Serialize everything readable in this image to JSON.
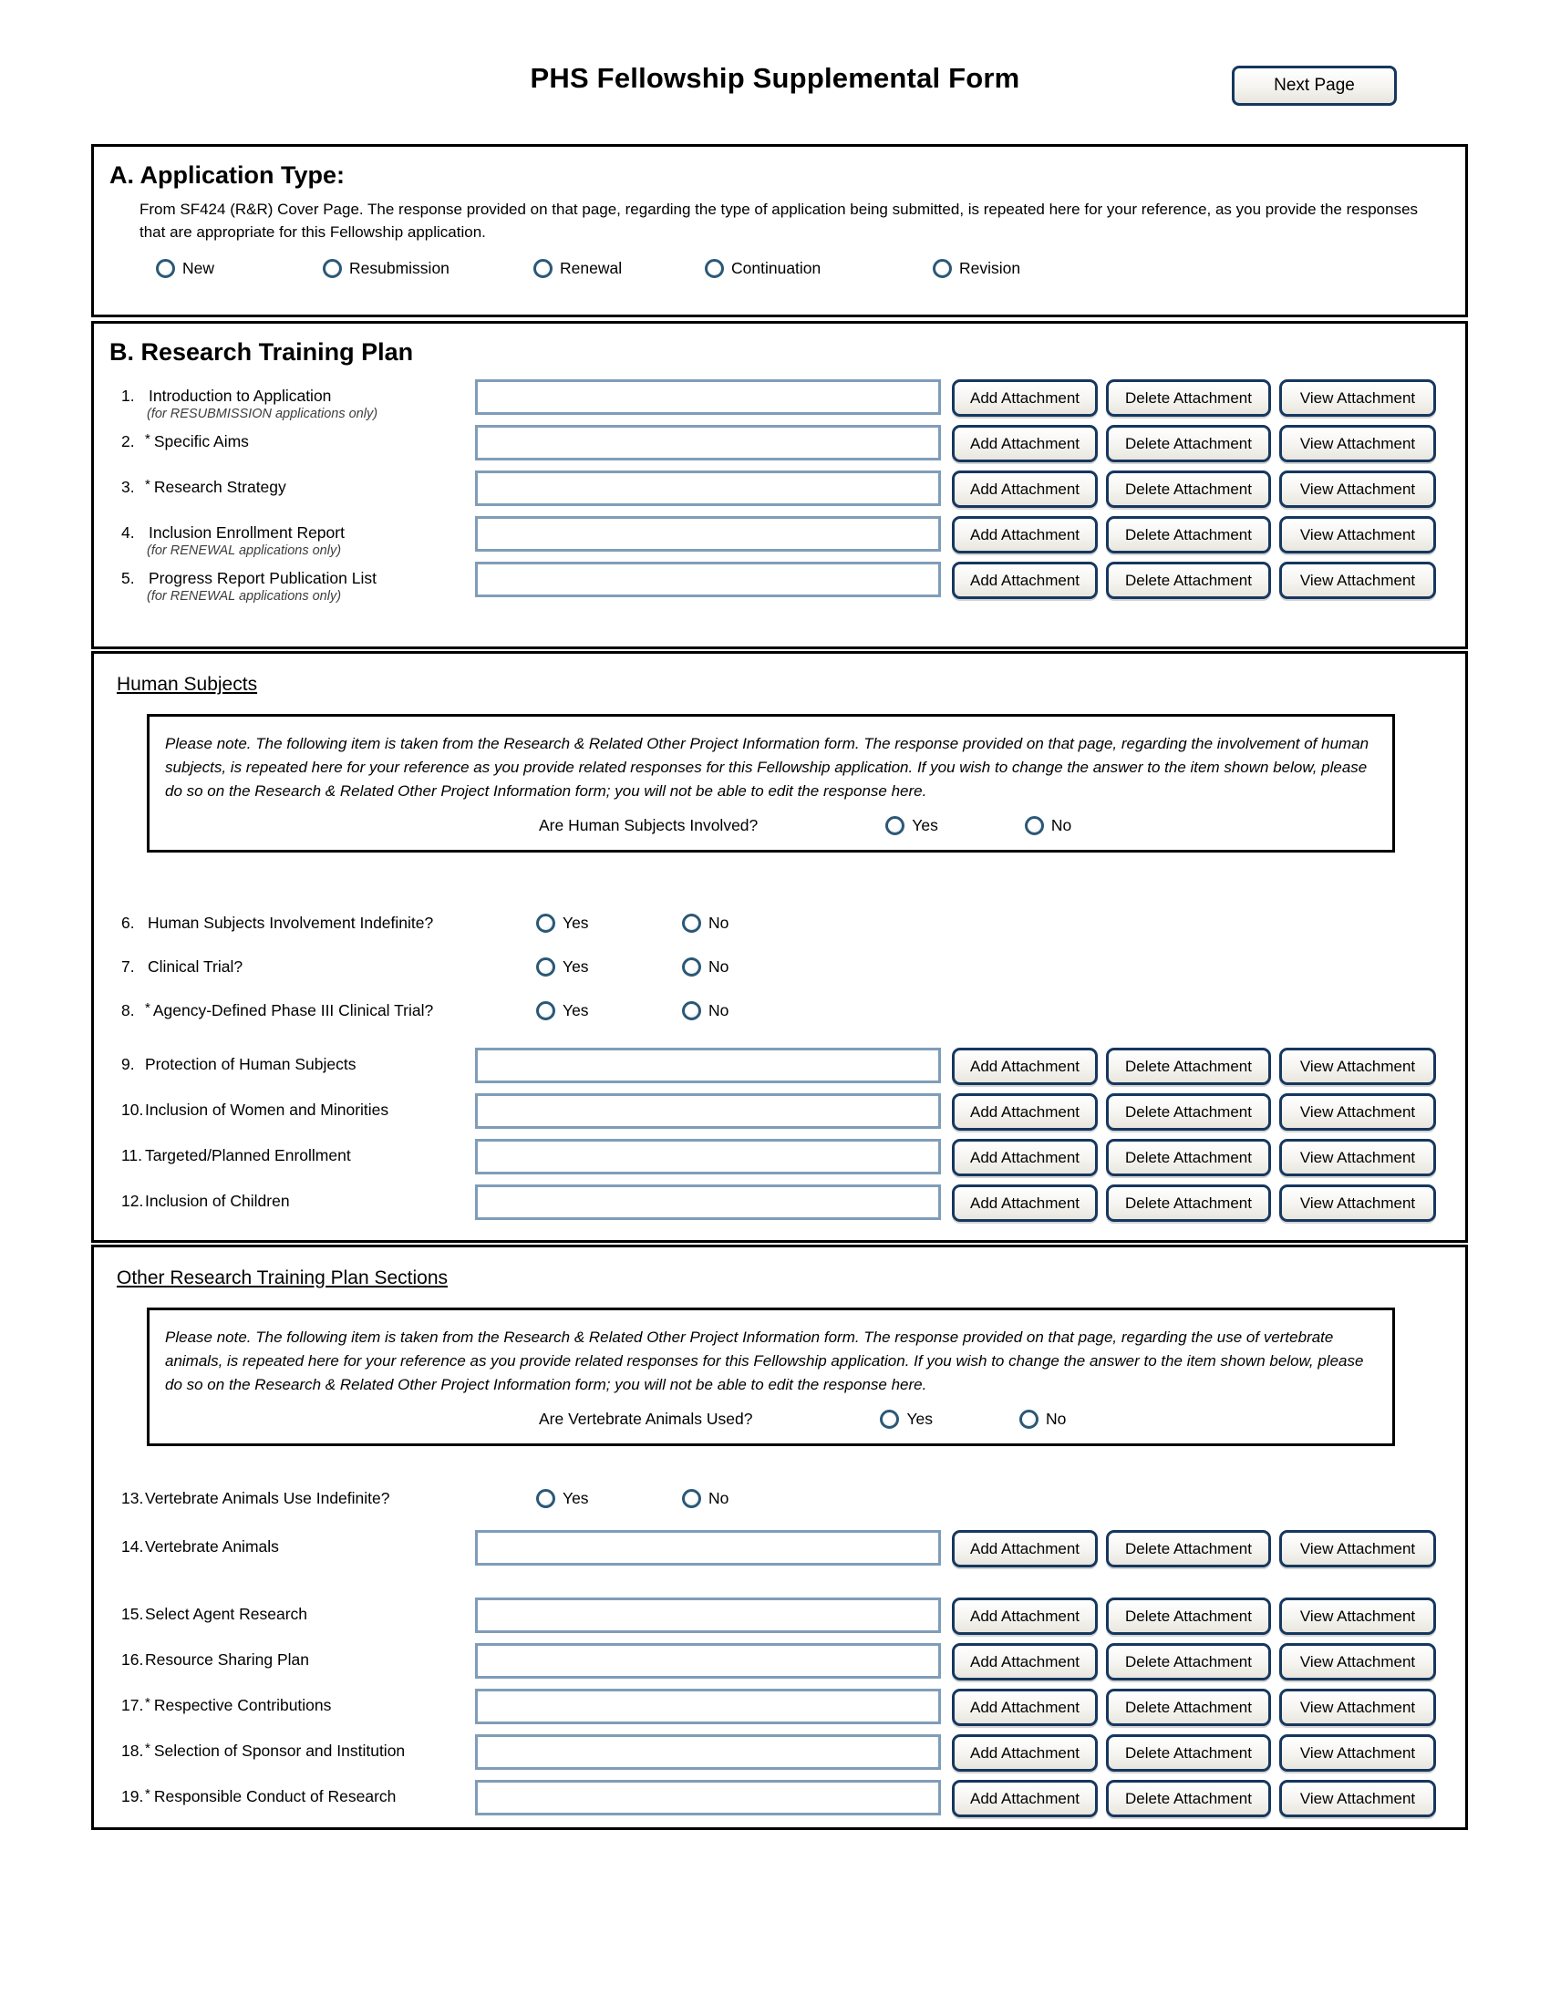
{
  "header": {
    "title": "PHS Fellowship Supplemental Form",
    "next_page_label": "Next Page"
  },
  "buttons": {
    "add_label": "Add Attachment",
    "delete_label": "Delete Attachment",
    "view_label": "View Attachment"
  },
  "radio_labels": {
    "yes": "Yes",
    "no": "No"
  },
  "section_a": {
    "title": "A. Application Type:",
    "description": "From SF424 (R&R) Cover Page.  The response provided on that page, regarding the type of application being submitted, is repeated here for your reference, as you provide the responses that are appropriate for this Fellowship application.",
    "options": [
      {
        "label": "New"
      },
      {
        "label": "Resubmission"
      },
      {
        "label": "Renewal"
      },
      {
        "label": "Continuation"
      },
      {
        "label": "Revision"
      }
    ]
  },
  "section_b": {
    "title": "B. Research Training Plan",
    "items": [
      {
        "num": "1.",
        "label": "Introduction to Application",
        "note": "(for RESUBMISSION applications only)"
      },
      {
        "num": "2.",
        "star": "*",
        "label": "Specific Aims"
      },
      {
        "num": "3.",
        "star": "*",
        "label": "Research Strategy"
      },
      {
        "num": "4.",
        "label": "Inclusion Enrollment Report",
        "note": "(for RENEWAL applications only)"
      },
      {
        "num": "5.",
        "label": "Progress Report Publication List",
        "note": "(for RENEWAL applications only)"
      }
    ]
  },
  "human_subjects": {
    "heading": "Human Subjects",
    "note": "Please note.  The following item is taken from the Research & Related Other Project Information form. The response provided on that page, regarding the involvement of human subjects, is repeated here for your reference as you provide related responses for this Fellowship application. If you wish to change the answer to the item shown below, please do so on the Research & Related Other Project Information form; you will not be able to edit the response here.",
    "question": "Are Human Subjects Involved?",
    "questions": [
      {
        "num": "6.",
        "label": "Human Subjects Involvement Indefinite?"
      },
      {
        "num": "7.",
        "label": "Clinical Trial?"
      },
      {
        "num": "8.",
        "star": "*",
        "label": "Agency-Defined Phase III Clinical Trial?"
      }
    ],
    "attachments": [
      {
        "num": "9.",
        "label": "Protection of Human Subjects"
      },
      {
        "num": "10.",
        "label": "Inclusion of Women and Minorities"
      },
      {
        "num": "11.",
        "label": "Targeted/Planned Enrollment"
      },
      {
        "num": "12.",
        "label": "Inclusion of Children"
      }
    ]
  },
  "other_sections": {
    "heading": "Other Research Training Plan Sections",
    "note": "Please note.  The following item is taken from the Research & Related Other Project Information form. The response provided on that page, regarding the use of vertebrate animals, is repeated here for your reference as you provide related responses for this Fellowship application. If you wish to change the answer to the item shown below, please do so on the Research & Related Other Project Information form; you will not be able to edit the response here.",
    "question": "Are Vertebrate Animals Used?",
    "q13": {
      "num": "13.",
      "label": "Vertebrate Animals Use Indefinite?"
    },
    "attachments": [
      {
        "num": "14.",
        "label": "Vertebrate Animals"
      },
      {
        "num": "15.",
        "label": "Select Agent Research"
      },
      {
        "num": "16.",
        "label": "Resource Sharing Plan"
      },
      {
        "num": "17.",
        "star": "*",
        "label": "Respective Contributions"
      },
      {
        "num": "18.",
        "star": "*",
        "label": "Selection of Sponsor and Institution"
      },
      {
        "num": "19.",
        "star": "*",
        "label": "Responsible Conduct of Research"
      }
    ]
  }
}
